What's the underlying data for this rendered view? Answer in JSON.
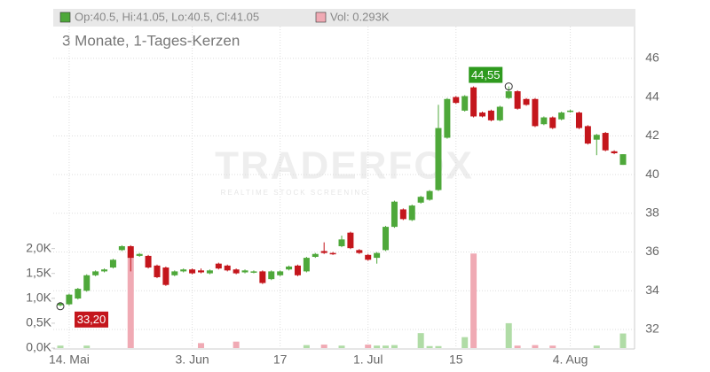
{
  "chart_data": {
    "type": "candlestick",
    "header": {
      "ohlc": "Op:40.5, Hi:41.05, Lo:40.5, Cl:41.05",
      "volume": "Vol: 0.293K"
    },
    "subtitle": "3 Monate, 1-Tages-Kerzen",
    "watermark": {
      "brand": "TRADERFOX",
      "tagline": "REALTIME STOCK SCREENING"
    },
    "categories": [
      null,
      "14. Mai",
      null,
      null,
      null,
      null,
      null,
      null,
      null,
      null,
      null,
      null,
      null,
      null,
      null,
      "3. Jun",
      null,
      null,
      null,
      null,
      null,
      null,
      null,
      null,
      null,
      "17",
      null,
      null,
      null,
      null,
      null,
      null,
      null,
      null,
      null,
      "1. Jul",
      null,
      null,
      null,
      null,
      null,
      null,
      null,
      null,
      null,
      "15",
      null,
      null,
      null,
      null,
      null,
      null,
      null,
      null,
      null,
      null,
      null,
      null,
      "4. Aug",
      null,
      null,
      null,
      null,
      null,
      null
    ],
    "open": [
      33.25,
      33.3,
      33.6,
      34.0,
      34.8,
      35.0,
      35.2,
      36.1,
      36.3,
      35.8,
      35.8,
      35.3,
      35.2,
      34.8,
      35.0,
      35.1,
      35.05,
      34.9,
      35.4,
      35.3,
      35.1,
      34.95,
      34.95,
      35.0,
      34.6,
      34.8,
      35.1,
      35.3,
      35.0,
      35.75,
      36.05,
      35.95,
      36.3,
      37.0,
      36.1,
      35.85,
      35.7,
      36.1,
      37.3,
      38.2,
      37.65,
      38.55,
      38.7,
      39.2,
      41.9,
      44.0,
      43.3,
      44.5,
      43.2,
      43.3,
      42.8,
      43.95,
      44.3,
      43.9,
      43.9,
      42.6,
      42.95,
      42.85,
      43.25,
      43.2,
      42.5,
      41.8,
      42.15,
      41.2,
      40.5
    ],
    "high": [
      33.4,
      33.85,
      34.15,
      34.85,
      35.05,
      35.15,
      35.65,
      36.35,
      36.35,
      35.95,
      35.85,
      35.35,
      35.25,
      35.05,
      35.15,
      35.15,
      35.15,
      35.1,
      35.45,
      35.35,
      35.15,
      35.1,
      35.05,
      35.05,
      35.05,
      35.05,
      35.3,
      35.35,
      35.75,
      35.95,
      36.5,
      36.0,
      36.85,
      37.05,
      36.15,
      35.9,
      36.0,
      37.35,
      38.65,
      38.25,
      38.45,
      38.9,
      39.2,
      43.6,
      43.95,
      44.05,
      44.1,
      44.55,
      43.25,
      43.35,
      43.55,
      44.55,
      44.35,
      43.95,
      43.95,
      43.0,
      43.0,
      43.25,
      43.35,
      43.25,
      42.55,
      42.1,
      42.2,
      41.25,
      41.05
    ],
    "low": [
      33.2,
      33.25,
      33.55,
      33.95,
      34.75,
      34.95,
      35.15,
      36.05,
      35.0,
      35.75,
      35.15,
      34.65,
      34.25,
      34.75,
      34.95,
      34.85,
      34.9,
      34.85,
      35.1,
      35.0,
      34.85,
      34.9,
      34.9,
      34.35,
      34.55,
      34.75,
      35.05,
      34.75,
      34.95,
      35.7,
      35.9,
      35.85,
      36.25,
      36.15,
      35.9,
      35.55,
      35.4,
      36.05,
      37.25,
      37.65,
      37.6,
      38.5,
      38.65,
      39.15,
      41.85,
      43.65,
      43.25,
      42.95,
      42.95,
      42.75,
      42.75,
      43.9,
      43.35,
      43.55,
      42.45,
      42.55,
      42.35,
      42.8,
      43.2,
      42.35,
      41.55,
      41.0,
      41.2,
      41.05,
      40.5
    ],
    "close": [
      33.35,
      33.8,
      34.1,
      34.8,
      35.0,
      35.1,
      35.6,
      36.3,
      35.7,
      35.9,
      35.2,
      34.7,
      34.3,
      35.0,
      35.1,
      34.9,
      34.95,
      35.05,
      35.15,
      35.05,
      34.9,
      35.05,
      35.0,
      34.4,
      35.0,
      35.0,
      35.25,
      34.8,
      35.7,
      35.9,
      35.95,
      35.9,
      36.65,
      36.2,
      35.95,
      35.6,
      35.95,
      37.3,
      38.6,
      37.7,
      38.4,
      38.85,
      39.15,
      42.4,
      43.9,
      43.7,
      44.05,
      43.0,
      43.0,
      42.8,
      43.5,
      44.3,
      43.4,
      43.6,
      42.5,
      42.95,
      42.4,
      43.2,
      43.3,
      42.4,
      41.6,
      42.05,
      41.25,
      41.1,
      41.05
    ],
    "volume": [
      0.05,
      0,
      0,
      0.05,
      0,
      0,
      0,
      0,
      1.95,
      0,
      0,
      0,
      0,
      0,
      0,
      0,
      0.1,
      0,
      0,
      0,
      0.13,
      0,
      0,
      0,
      0,
      0,
      0,
      0,
      0.06,
      0,
      0.07,
      0,
      0.05,
      0,
      0,
      0.07,
      0.05,
      0.05,
      0.06,
      0,
      0,
      0.3,
      0.04,
      0.04,
      0,
      0,
      0.22,
      1.9,
      0,
      0,
      0,
      0.5,
      0.05,
      0,
      0.06,
      0,
      0.05,
      0,
      0,
      0,
      0,
      0.05,
      0,
      0,
      0.293
    ],
    "up_color": "#4ea83a",
    "down_color": "#c4161c",
    "volume_up_color": "#b0dca6",
    "volume_down_color": "#f0aab4",
    "ylim": [
      31.04,
      47.64
    ],
    "yticks": [
      32,
      34,
      36,
      38,
      40,
      42,
      44,
      46
    ],
    "y2lim": [
      0,
      6.46
    ],
    "y2ticks": [
      {
        "value": 0,
        "label": "0,0K"
      },
      {
        "value": 0.5,
        "label": "0,5K"
      },
      {
        "value": 1.0,
        "label": "1,0K"
      },
      {
        "value": 1.5,
        "label": "1,5K"
      },
      {
        "value": 2.0,
        "label": "2,0K"
      }
    ],
    "annotations": [
      {
        "label": "33,20",
        "value": 33.2,
        "category": 0,
        "color": "#c4161c"
      },
      {
        "label": "44,55",
        "value": 44.55,
        "category": 51,
        "color": "#2e9a1e"
      }
    ],
    "grid": true
  }
}
